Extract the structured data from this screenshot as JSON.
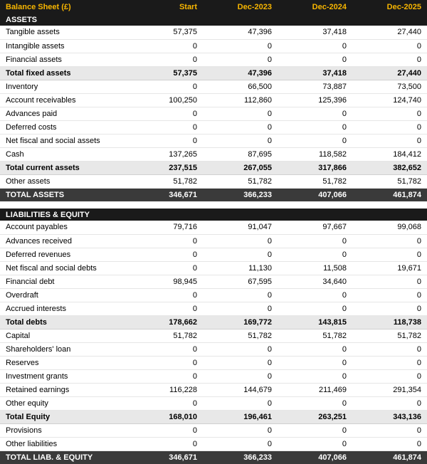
{
  "header": {
    "title": "Balance Sheet (£)",
    "cols": [
      "Start",
      "Dec-2023",
      "Dec-2024",
      "Dec-2025"
    ]
  },
  "styles": {
    "header_bg": "#1a1a1a",
    "header_fg": "#f7b500",
    "section_bg": "#1a1a1a",
    "section_fg": "#ffffff",
    "subtotal_bg": "#e8e8e8",
    "grand_bg": "#3a3a3a",
    "grand_fg": "#ffffff",
    "row_border": "#e6e6e6",
    "font_size": 11
  },
  "rows": [
    {
      "type": "section",
      "label": "ASSETS"
    },
    {
      "type": "data",
      "label": "Tangible assets",
      "v": [
        "57,375",
        "47,396",
        "37,418",
        "27,440"
      ]
    },
    {
      "type": "data",
      "label": "Intangible assets",
      "v": [
        "0",
        "0",
        "0",
        "0"
      ]
    },
    {
      "type": "data",
      "label": "Financial assets",
      "v": [
        "0",
        "0",
        "0",
        "0"
      ]
    },
    {
      "type": "subtotal",
      "label": "Total fixed assets",
      "v": [
        "57,375",
        "47,396",
        "37,418",
        "27,440"
      ]
    },
    {
      "type": "data",
      "label": "Inventory",
      "v": [
        "0",
        "66,500",
        "73,887",
        "73,500"
      ]
    },
    {
      "type": "data",
      "label": "Account receivables",
      "v": [
        "100,250",
        "112,860",
        "125,396",
        "124,740"
      ]
    },
    {
      "type": "data",
      "label": "Advances paid",
      "v": [
        "0",
        "0",
        "0",
        "0"
      ]
    },
    {
      "type": "data",
      "label": "Deferred costs",
      "v": [
        "0",
        "0",
        "0",
        "0"
      ]
    },
    {
      "type": "data",
      "label": "Net fiscal and social assets",
      "v": [
        "0",
        "0",
        "0",
        "0"
      ]
    },
    {
      "type": "data",
      "label": "Cash",
      "v": [
        "137,265",
        "87,695",
        "118,582",
        "184,412"
      ]
    },
    {
      "type": "subtotal",
      "label": "Total current assets",
      "v": [
        "237,515",
        "267,055",
        "317,866",
        "382,652"
      ]
    },
    {
      "type": "data",
      "label": "Other assets",
      "v": [
        "51,782",
        "51,782",
        "51,782",
        "51,782"
      ]
    },
    {
      "type": "grand",
      "label": "TOTAL ASSETS",
      "v": [
        "346,671",
        "366,233",
        "407,066",
        "461,874"
      ]
    },
    {
      "type": "gap"
    },
    {
      "type": "section",
      "label": "LIABILITIES & EQUITY"
    },
    {
      "type": "data",
      "label": "Account payables",
      "v": [
        "79,716",
        "91,047",
        "97,667",
        "99,068"
      ]
    },
    {
      "type": "data",
      "label": "Advances received",
      "v": [
        "0",
        "0",
        "0",
        "0"
      ]
    },
    {
      "type": "data",
      "label": "Deferred revenues",
      "v": [
        "0",
        "0",
        "0",
        "0"
      ]
    },
    {
      "type": "data",
      "label": "Net fiscal and social debts",
      "v": [
        "0",
        "11,130",
        "11,508",
        "19,671"
      ]
    },
    {
      "type": "data",
      "label": "Financial debt",
      "v": [
        "98,945",
        "67,595",
        "34,640",
        "0"
      ]
    },
    {
      "type": "data",
      "label": "Overdraft",
      "v": [
        "0",
        "0",
        "0",
        "0"
      ]
    },
    {
      "type": "data",
      "label": "Accrued interests",
      "v": [
        "0",
        "0",
        "0",
        "0"
      ]
    },
    {
      "type": "subtotal",
      "label": "Total debts",
      "v": [
        "178,662",
        "169,772",
        "143,815",
        "118,738"
      ]
    },
    {
      "type": "data",
      "label": "Capital",
      "v": [
        "51,782",
        "51,782",
        "51,782",
        "51,782"
      ]
    },
    {
      "type": "data",
      "label": "Shareholders' loan",
      "v": [
        "0",
        "0",
        "0",
        "0"
      ]
    },
    {
      "type": "data",
      "label": "Reserves",
      "v": [
        "0",
        "0",
        "0",
        "0"
      ]
    },
    {
      "type": "data",
      "label": "Investment grants",
      "v": [
        "0",
        "0",
        "0",
        "0"
      ]
    },
    {
      "type": "data",
      "label": "Retained earnings",
      "v": [
        "116,228",
        "144,679",
        "211,469",
        "291,354"
      ]
    },
    {
      "type": "data",
      "label": "Other equity",
      "v": [
        "0",
        "0",
        "0",
        "0"
      ]
    },
    {
      "type": "subtotal",
      "label": "Total Equity",
      "v": [
        "168,010",
        "196,461",
        "263,251",
        "343,136"
      ]
    },
    {
      "type": "data",
      "label": "Provisions",
      "v": [
        "0",
        "0",
        "0",
        "0"
      ]
    },
    {
      "type": "data",
      "label": "Other liabilities",
      "v": [
        "0",
        "0",
        "0",
        "0"
      ]
    },
    {
      "type": "grand",
      "label": "TOTAL LIAB. & EQUITY",
      "v": [
        "346,671",
        "366,233",
        "407,066",
        "461,874"
      ]
    }
  ]
}
